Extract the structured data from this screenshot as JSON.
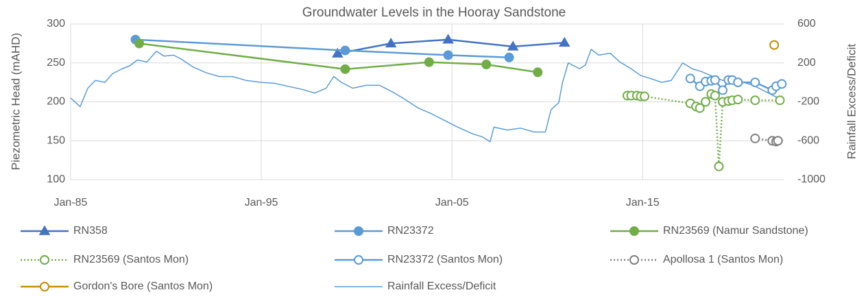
{
  "chart_data": {
    "type": "line",
    "title": "Groundwater Levels in the Hooray Sandstone",
    "y_label": "Piezometric Head (mAHD)",
    "y2_label": "Rainfall Excess/Deficit",
    "xlim": [
      1985,
      2022.4
    ],
    "xticks": [
      {
        "value": 1985,
        "label": "Jan-85"
      },
      {
        "value": 1995,
        "label": "Jan-95"
      },
      {
        "value": 2005,
        "label": "Jan-05"
      },
      {
        "value": 2015,
        "label": "Jan-15"
      }
    ],
    "ylim": [
      100,
      300
    ],
    "yticks": [
      100,
      150,
      200,
      250,
      300
    ],
    "y2lim": [
      -1000,
      600
    ],
    "y2ticks": [
      -1000,
      -600,
      -200,
      200,
      600
    ],
    "grid": true,
    "legend": "bottom",
    "series": [
      {
        "name": "RN358",
        "color": "#4472c4",
        "marker": "triangle",
        "marker_fill": "filled",
        "line_style": "solid",
        "x": [
          1999.0,
          2001.8,
          2004.8,
          2008.2,
          2010.9
        ],
        "values": [
          262,
          275,
          280,
          271,
          276
        ]
      },
      {
        "name": "RN23372",
        "color": "#5b9bd5",
        "marker": "circle",
        "marker_fill": "filled",
        "line_style": "solid",
        "x": [
          1988.4,
          1999.4,
          2004.8,
          2008.0
        ],
        "values": [
          280,
          266,
          260,
          257
        ]
      },
      {
        "name": "RN23569 (Namur Sandstone)",
        "color": "#70ad47",
        "marker": "circle",
        "marker_fill": "filled",
        "line_style": "solid",
        "x": [
          1988.6,
          1999.4,
          2003.8,
          2006.8,
          2009.5
        ],
        "values": [
          275,
          242,
          251,
          248,
          238
        ]
      },
      {
        "name": "RN23569 (Santos Mon)",
        "color": "#70ad47",
        "marker": "circle",
        "marker_fill": "open",
        "line_style": "dotted",
        "x": [
          2014.2,
          2014.4,
          2014.7,
          2014.9,
          2015.1,
          2017.5,
          2017.8,
          2018.0,
          2018.3,
          2018.6,
          2018.8,
          2019.0,
          2019.2,
          2019.5,
          2019.7,
          2020.0,
          2020.9,
          2022.2
        ],
        "values": [
          208,
          208,
          208,
          207,
          207,
          198,
          194,
          192,
          200,
          210,
          208,
          117,
          200,
          201,
          202,
          203,
          202,
          202
        ]
      },
      {
        "name": "RN23372 (Santos Mon)",
        "color": "#5b9bd5",
        "marker": "circle",
        "marker_fill": "open",
        "line_style": "solid",
        "x": [
          2017.5,
          2018.0,
          2018.3,
          2018.6,
          2018.8,
          2019.2,
          2019.5,
          2019.7,
          2020.0,
          2020.9,
          2021.8,
          2022.0,
          2022.3
        ],
        "values": [
          230,
          220,
          226,
          227,
          228,
          215,
          228,
          228,
          225,
          225,
          215,
          220,
          223
        ]
      },
      {
        "name": "Apollosa 1 (Santos Mon)",
        "color": "#7f7f7f",
        "marker": "circle",
        "marker_fill": "open",
        "line_style": "dotted",
        "x": [
          2020.9,
          2021.8,
          2022.0,
          2022.1
        ],
        "values": [
          153,
          150,
          149,
          150
        ]
      },
      {
        "name": "Gordon's Bore (Santos Mon)",
        "color": "#bf9000",
        "marker": "circle",
        "marker_fill": "open",
        "line_style": "solid",
        "x": [
          2021.9
        ],
        "values": [
          273
        ]
      },
      {
        "name": "Rainfall Excess/Deficit",
        "color": "#5b9bd5",
        "marker": "none",
        "marker_fill": "none",
        "line_style": "thin",
        "axis": "y2",
        "x": [
          1985.0,
          1985.5,
          1985.9,
          1986.3,
          1986.8,
          1987.2,
          1987.7,
          1988.1,
          1988.5,
          1989.0,
          1989.5,
          1989.9,
          1990.4,
          1990.8,
          1991.4,
          1992.1,
          1992.8,
          1993.5,
          1994.2,
          1995.0,
          1995.7,
          1996.4,
          1997.1,
          1997.8,
          1998.4,
          1998.8,
          1999.2,
          1999.8,
          2000.5,
          2001.2,
          2001.9,
          2002.5,
          2003.2,
          2003.9,
          2004.6,
          2005.3,
          2006.1,
          2006.6,
          2007.0,
          2007.2,
          2007.9,
          2008.6,
          2009.3,
          2009.9,
          2010.2,
          2010.6,
          2010.8,
          2011.1,
          2011.7,
          2012.0,
          2012.3,
          2012.7,
          2013.3,
          2013.8,
          2014.4,
          2014.9,
          2015.4,
          2016.0,
          2016.5,
          2017.1,
          2017.6,
          2018.1,
          2018.7,
          2019.2,
          2019.7,
          2020.3,
          2020.8,
          2021.5,
          2022.3
        ],
        "values": [
          -160,
          -250,
          -60,
          20,
          0,
          90,
          140,
          170,
          230,
          210,
          320,
          270,
          280,
          240,
          160,
          100,
          60,
          60,
          20,
          0,
          -10,
          -40,
          -70,
          -110,
          -60,
          60,
          0,
          -60,
          -30,
          -30,
          -100,
          -170,
          -260,
          -320,
          -390,
          -460,
          -530,
          -560,
          -610,
          -460,
          -490,
          -470,
          -510,
          -510,
          -280,
          -210,
          0,
          200,
          140,
          180,
          340,
          280,
          300,
          210,
          140,
          70,
          40,
          0,
          20,
          200,
          140,
          110,
          60,
          20,
          40,
          0,
          -30,
          -100,
          -180
        ]
      }
    ]
  }
}
